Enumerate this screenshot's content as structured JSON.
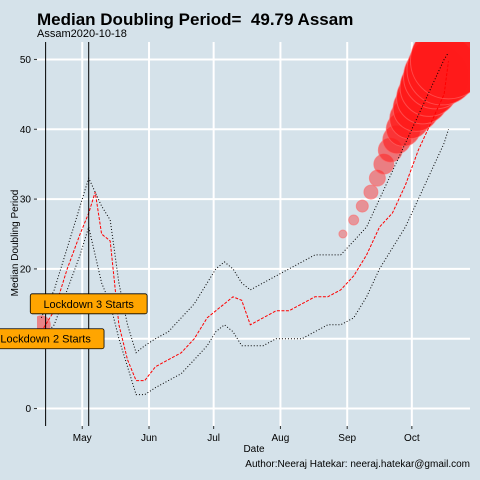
{
  "chart_data": {
    "type": "line",
    "title": "Median Doubling Period=  49.79 Assam",
    "subtitle": "Assam2020-10-18",
    "xlabel": "Date",
    "ylabel": "Median Doubling Period",
    "caption": "Author:Neeraj Hatekar: neeraj.hatekar@gmail.com",
    "x_ticks": [
      "May",
      "Jun",
      "Jul",
      "Aug",
      "Sep",
      "Oct"
    ],
    "y_ticks": [
      0,
      10,
      20,
      30,
      40,
      50
    ],
    "xlim": [
      "2020-04-10",
      "2020-10-28"
    ],
    "ylim": [
      -2.5,
      52.5
    ],
    "grid": true,
    "vlines": [
      {
        "date": "2020-04-14",
        "label": "Lockdown 2 Starts",
        "label_y": 10
      },
      {
        "date": "2020-05-04",
        "label": "Lockdown 3 Starts",
        "label_y": 15
      }
    ],
    "series": [
      {
        "name": "median",
        "color": "#ff0000",
        "x": [
          "2020-04-12",
          "2020-04-18",
          "2020-04-24",
          "2020-04-30",
          "2020-05-04",
          "2020-05-07",
          "2020-05-10",
          "2020-05-14",
          "2020-05-18",
          "2020-05-22",
          "2020-05-26",
          "2020-05-30",
          "2020-06-04",
          "2020-06-10",
          "2020-06-16",
          "2020-06-22",
          "2020-06-28",
          "2020-07-02",
          "2020-07-06",
          "2020-07-10",
          "2020-07-14",
          "2020-07-18",
          "2020-07-24",
          "2020-07-30",
          "2020-08-05",
          "2020-08-11",
          "2020-08-17",
          "2020-08-23",
          "2020-08-29",
          "2020-09-04",
          "2020-09-10",
          "2020-09-16",
          "2020-09-22",
          "2020-09-28",
          "2020-10-04",
          "2020-10-10",
          "2020-10-16",
          "2020-10-18"
        ],
        "values": [
          11,
          14,
          20,
          25,
          28,
          31,
          25,
          24,
          12,
          7,
          4,
          4,
          6,
          7,
          8,
          10,
          13,
          14,
          15,
          16,
          15.5,
          12,
          13,
          14,
          14,
          15,
          16,
          16,
          17,
          19,
          22,
          26,
          28,
          32,
          37,
          41,
          45,
          49.8
        ]
      },
      {
        "name": "upper",
        "color": "#000000",
        "style": "dotted",
        "x": [
          "2020-04-12",
          "2020-04-18",
          "2020-04-24",
          "2020-04-30",
          "2020-05-04",
          "2020-05-10",
          "2020-05-14",
          "2020-05-18",
          "2020-05-22",
          "2020-05-26",
          "2020-05-30",
          "2020-06-04",
          "2020-06-10",
          "2020-06-16",
          "2020-06-22",
          "2020-06-28",
          "2020-07-02",
          "2020-07-06",
          "2020-07-10",
          "2020-07-14",
          "2020-07-18",
          "2020-07-24",
          "2020-07-30",
          "2020-08-05",
          "2020-08-11",
          "2020-08-17",
          "2020-08-23",
          "2020-08-29",
          "2020-09-04",
          "2020-09-10",
          "2020-09-16",
          "2020-09-22",
          "2020-09-28",
          "2020-10-04",
          "2020-10-10",
          "2020-10-16",
          "2020-10-18"
        ],
        "values": [
          13,
          17,
          23,
          29,
          33,
          29,
          27,
          18,
          12,
          8,
          9,
          10,
          11,
          13,
          15,
          18,
          20,
          21,
          20,
          18,
          17,
          18,
          19,
          20,
          21,
          22,
          22,
          22,
          24,
          26,
          30,
          34,
          38,
          42,
          46,
          50,
          51
        ]
      },
      {
        "name": "lower",
        "color": "#000000",
        "style": "dotted",
        "x": [
          "2020-04-12",
          "2020-04-18",
          "2020-04-24",
          "2020-04-30",
          "2020-05-04",
          "2020-05-10",
          "2020-05-14",
          "2020-05-18",
          "2020-05-22",
          "2020-05-26",
          "2020-05-30",
          "2020-06-04",
          "2020-06-10",
          "2020-06-16",
          "2020-06-22",
          "2020-06-28",
          "2020-07-02",
          "2020-07-06",
          "2020-07-10",
          "2020-07-14",
          "2020-07-18",
          "2020-07-24",
          "2020-07-30",
          "2020-08-05",
          "2020-08-11",
          "2020-08-17",
          "2020-08-23",
          "2020-08-29",
          "2020-09-04",
          "2020-09-10",
          "2020-09-16",
          "2020-09-22",
          "2020-09-28",
          "2020-10-04",
          "2020-10-10",
          "2020-10-16",
          "2020-10-18"
        ],
        "values": [
          10,
          12,
          17,
          22,
          26,
          18,
          15,
          10,
          6,
          2,
          2,
          3,
          4,
          5,
          7,
          9,
          11,
          12,
          11,
          9,
          9,
          9,
          10,
          10,
          10,
          11,
          12,
          12,
          13,
          16,
          20,
          23,
          26,
          30,
          34,
          38,
          40
        ]
      }
    ],
    "bubbles": [
      {
        "x": "2020-04-12",
        "y": 12,
        "r": 9
      },
      {
        "x": "2020-08-30",
        "y": 25,
        "r": 4
      },
      {
        "x": "2020-09-04",
        "y": 27,
        "r": 5
      },
      {
        "x": "2020-09-08",
        "y": 29,
        "r": 6
      },
      {
        "x": "2020-09-12",
        "y": 31,
        "r": 7
      },
      {
        "x": "2020-09-15",
        "y": 33,
        "r": 8
      },
      {
        "x": "2020-09-18",
        "y": 35,
        "r": 10
      },
      {
        "x": "2020-09-21",
        "y": 37,
        "r": 12
      },
      {
        "x": "2020-09-24",
        "y": 38.5,
        "r": 14
      },
      {
        "x": "2020-09-27",
        "y": 40,
        "r": 17
      },
      {
        "x": "2020-09-30",
        "y": 41.5,
        "r": 20
      },
      {
        "x": "2020-10-03",
        "y": 43,
        "r": 23
      },
      {
        "x": "2020-10-06",
        "y": 44.5,
        "r": 26
      },
      {
        "x": "2020-10-09",
        "y": 46,
        "r": 29
      },
      {
        "x": "2020-10-12",
        "y": 47.5,
        "r": 32
      },
      {
        "x": "2020-10-15",
        "y": 48.5,
        "r": 35
      },
      {
        "x": "2020-10-18",
        "y": 49.8,
        "r": 38
      }
    ]
  }
}
